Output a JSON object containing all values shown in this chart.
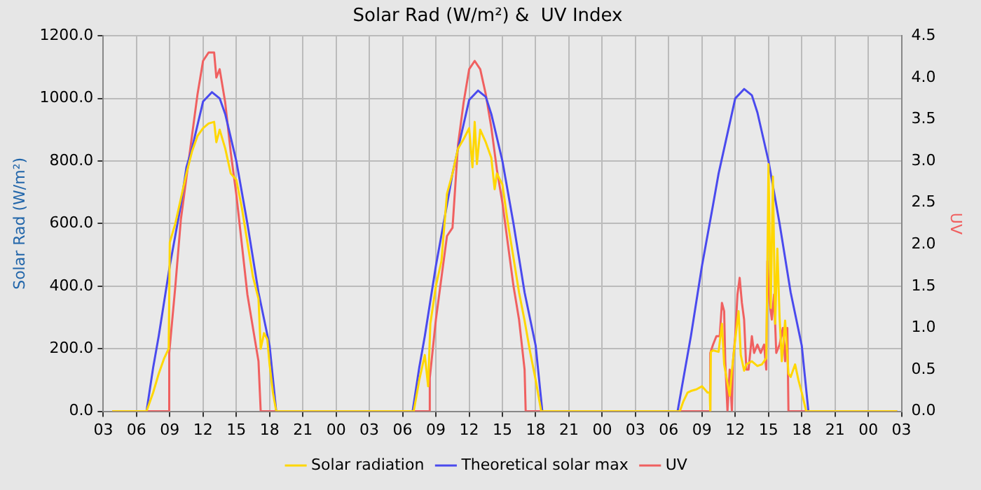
{
  "chart_data": {
    "type": "line",
    "title": "Solar Rad (W/m²) &  UV Index",
    "ylabel": "Solar Rad (W/m²)",
    "y2label": "UV",
    "xlim": [
      3,
      75
    ],
    "xticks": [
      {
        "value": 3,
        "label": "03"
      },
      {
        "value": 6,
        "label": "06"
      },
      {
        "value": 9,
        "label": "09"
      },
      {
        "value": 12,
        "label": "12"
      },
      {
        "value": 15,
        "label": "15"
      },
      {
        "value": 18,
        "label": "18"
      },
      {
        "value": 21,
        "label": "21"
      },
      {
        "value": 24,
        "label": "00"
      },
      {
        "value": 27,
        "label": "03"
      },
      {
        "value": 30,
        "label": "06"
      },
      {
        "value": 33,
        "label": "09"
      },
      {
        "value": 36,
        "label": "12"
      },
      {
        "value": 39,
        "label": "15"
      },
      {
        "value": 42,
        "label": "18"
      },
      {
        "value": 45,
        "label": "21"
      },
      {
        "value": 48,
        "label": "00"
      },
      {
        "value": 51,
        "label": "03"
      },
      {
        "value": 54,
        "label": "06"
      },
      {
        "value": 57,
        "label": "09"
      },
      {
        "value": 60,
        "label": "12"
      },
      {
        "value": 63,
        "label": "15"
      },
      {
        "value": 66,
        "label": "18"
      },
      {
        "value": 69,
        "label": "21"
      },
      {
        "value": 72,
        "label": "00"
      },
      {
        "value": 75,
        "label": "03"
      }
    ],
    "ylim": [
      0,
      1200
    ],
    "yticks": [
      {
        "value": 0,
        "label": "0.0"
      },
      {
        "value": 200,
        "label": "200.0"
      },
      {
        "value": 400,
        "label": "400.0"
      },
      {
        "value": 600,
        "label": "600.0"
      },
      {
        "value": 800,
        "label": "800.0"
      },
      {
        "value": 1000,
        "label": "1000.0"
      },
      {
        "value": 1200,
        "label": "1200.0"
      }
    ],
    "y2lim": [
      0,
      4.5
    ],
    "y2ticks": [
      {
        "value": 0,
        "label": "0.0"
      },
      0.5,
      {
        "value": 1,
        "label": "1.0"
      },
      1.5,
      {
        "value": 2,
        "label": "2.0"
      },
      2.5,
      {
        "value": 3,
        "label": "3.0"
      },
      3.5,
      {
        "value": 4,
        "label": "4.0"
      },
      4.5
    ],
    "grid": true,
    "legend": "bottom",
    "marker": "none",
    "series": [
      {
        "name": "Solar radiation",
        "color": "#ffd700",
        "x": [
          3.8,
          6.9,
          7.5,
          8,
          8.5,
          8.9,
          9.0,
          9.5,
          10,
          10.5,
          11,
          11.5,
          12,
          12.5,
          13,
          13.2,
          13.5,
          14,
          14.5,
          15,
          15.5,
          16,
          16.5,
          17,
          17.2,
          17.5,
          17.8,
          18,
          18.3,
          18.6,
          31,
          31.5,
          32,
          32.3,
          32.5,
          33,
          33.5,
          34,
          34.5,
          35,
          35.5,
          36,
          36.3,
          36.5,
          36.7,
          37,
          37.5,
          38,
          38.3,
          38.5,
          39,
          39.5,
          40,
          40.5,
          41,
          41.5,
          42,
          42.5,
          55,
          55.3,
          55.7,
          56,
          56.5,
          57,
          57.5,
          57.7,
          57.75,
          57.8,
          58,
          58.5,
          58.8,
          59,
          59.3,
          59.5,
          59.7,
          60,
          60.3,
          60.5,
          60.8,
          61,
          61.5,
          62,
          62.4,
          62.8,
          63,
          63.2,
          63.4,
          63.6,
          63.8,
          64,
          64.2,
          64.5,
          64.8,
          65,
          65.4,
          65.7,
          66,
          66.4,
          74.6
        ],
        "values": [
          0,
          0,
          60,
          120,
          170,
          200,
          540,
          600,
          680,
          760,
          830,
          880,
          905,
          920,
          925,
          860,
          900,
          840,
          760,
          740,
          650,
          540,
          430,
          360,
          200,
          250,
          230,
          150,
          60,
          0,
          0,
          100,
          180,
          80,
          280,
          400,
          480,
          695,
          760,
          840,
          870,
          905,
          780,
          925,
          790,
          900,
          860,
          810,
          710,
          760,
          725,
          600,
          490,
          380,
          290,
          190,
          100,
          0,
          0,
          30,
          60,
          65,
          70,
          80,
          60,
          60,
          0,
          190,
          195,
          190,
          280,
          150,
          90,
          50,
          130,
          230,
          320,
          180,
          130,
          150,
          160,
          145,
          150,
          170,
          790,
          330,
          750,
          280,
          520,
          300,
          160,
          290,
          120,
          110,
          150,
          100,
          60,
          0,
          0
        ]
      },
      {
        "name": "Theoretical solar max",
        "color": "#4a4aee",
        "x": [
          3.8,
          6.9,
          7.5,
          8,
          9,
          10,
          10.5,
          11,
          12,
          12.8,
          13.5,
          14,
          15,
          16,
          17,
          18,
          18.6,
          30.9,
          31.5,
          32,
          33,
          34,
          34.5,
          35,
          36,
          36.8,
          37.5,
          38,
          39,
          40,
          41,
          42,
          42.6,
          54.8,
          55.5,
          56,
          57,
          58,
          58.5,
          59,
          60,
          60.8,
          61.5,
          62,
          63,
          64,
          65,
          66,
          66.6,
          74.6
        ],
        "values": [
          0,
          0,
          140,
          240,
          465,
          660,
          780,
          840,
          990,
          1020,
          1000,
          950,
          800,
          600,
          380,
          210,
          0,
          0,
          140,
          240,
          465,
          660,
          760,
          840,
          995,
          1025,
          1005,
          950,
          800,
          600,
          380,
          210,
          0,
          0,
          140,
          240,
          465,
          660,
          760,
          840,
          1000,
          1030,
          1010,
          955,
          800,
          600,
          380,
          210,
          0,
          0
        ]
      },
      {
        "name": "UV",
        "color": "#f06060",
        "axis": "y2",
        "x": [
          3.8,
          8.9,
          8.95,
          9.5,
          10,
          10.5,
          11,
          11.5,
          12,
          12.5,
          13,
          13.2,
          13.5,
          14,
          14.5,
          15,
          15.5,
          16,
          16.5,
          17,
          17.2,
          32.4,
          32.45,
          33,
          33.5,
          34,
          34.5,
          35,
          35.5,
          36,
          36.5,
          37,
          37.5,
          38,
          38.5,
          39,
          39.5,
          40,
          40.5,
          41,
          41.1,
          57.7,
          57.75,
          58,
          58.3,
          58.6,
          58.8,
          59,
          59.1,
          59.3,
          59.5,
          59.7,
          59.8,
          60,
          60.2,
          60.4,
          60.6,
          60.8,
          61,
          61.2,
          61.5,
          61.7,
          62,
          62.3,
          62.6,
          62.8,
          62.9,
          63.1,
          63.3,
          63.5,
          63.7,
          64,
          64.3,
          64.5,
          64.7,
          64.8,
          65,
          74.6
        ],
        "values": [
          0,
          0,
          0.7,
          1.5,
          2.3,
          2.8,
          3.3,
          3.8,
          4.2,
          4.3,
          4.3,
          4.0,
          4.1,
          3.7,
          3.1,
          2.6,
          2.0,
          1.4,
          1.0,
          0.6,
          0,
          0,
          0.4,
          1.1,
          1.6,
          2.1,
          2.2,
          3.2,
          3.7,
          4.1,
          4.2,
          4.1,
          3.8,
          3.4,
          2.9,
          2.5,
          2.0,
          1.5,
          1.1,
          0.5,
          0,
          0,
          0.7,
          0.8,
          0.9,
          0.9,
          1.3,
          1.2,
          0.6,
          0,
          0.5,
          0,
          0.6,
          0.9,
          1.4,
          1.6,
          1.3,
          1.1,
          0.5,
          0.5,
          0.9,
          0.7,
          0.8,
          0.7,
          0.8,
          0.5,
          1.8,
          1.3,
          1.1,
          1.4,
          0.7,
          0.8,
          1.0,
          0.6,
          1.0,
          0,
          0,
          0
        ]
      }
    ]
  }
}
